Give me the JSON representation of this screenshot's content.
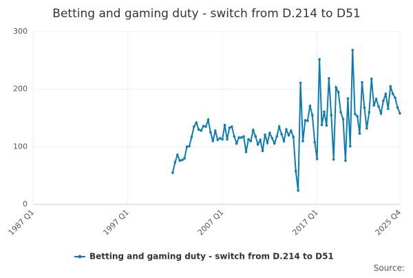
{
  "chart_data": {
    "type": "line",
    "title": "Betting and gaming duty - switch from D.214 to D51",
    "source": "Source:",
    "categories": [
      "1987 Q1",
      null,
      null,
      null,
      null,
      null,
      null,
      null,
      null,
      null,
      null,
      null,
      null,
      null,
      null,
      null,
      null,
      null,
      null,
      null,
      null,
      null,
      null,
      null,
      null,
      null,
      null,
      null,
      null,
      null,
      null,
      null,
      null,
      null,
      null,
      null,
      null,
      null,
      null,
      null,
      "1997 Q1",
      null,
      null,
      null,
      null,
      null,
      null,
      null,
      null,
      null,
      null,
      null,
      null,
      null,
      null,
      null,
      null,
      null,
      null,
      null,
      null,
      null,
      null,
      null,
      null,
      null,
      null,
      null,
      null,
      null,
      null,
      null,
      null,
      null,
      null,
      null,
      null,
      null,
      null,
      null,
      "2007 Q1",
      null,
      null,
      null,
      null,
      null,
      null,
      null,
      null,
      null,
      null,
      null,
      null,
      null,
      null,
      null,
      null,
      null,
      null,
      null,
      null,
      null,
      null,
      null,
      null,
      null,
      null,
      null,
      null,
      null,
      null,
      null,
      null,
      null,
      null,
      null,
      null,
      null,
      null,
      null,
      "2017 Q1",
      null,
      null,
      null,
      null,
      null,
      null,
      null,
      null,
      null,
      null,
      null,
      null,
      null,
      null,
      null,
      null,
      null,
      null,
      null,
      null,
      null,
      null,
      null,
      null,
      null,
      null,
      null,
      null,
      null,
      null,
      null,
      null,
      null,
      null,
      "2025 Q4"
    ],
    "series": [
      {
        "name": "Betting and gaming duty - switch from D.214 to D51",
        "color": "#0b7bb5",
        "values": [
          null,
          null,
          null,
          null,
          null,
          null,
          null,
          null,
          null,
          null,
          null,
          null,
          null,
          null,
          null,
          null,
          null,
          null,
          null,
          null,
          null,
          null,
          null,
          null,
          null,
          null,
          null,
          null,
          null,
          null,
          null,
          null,
          null,
          null,
          null,
          null,
          null,
          null,
          null,
          null,
          null,
          null,
          null,
          null,
          null,
          null,
          null,
          null,
          null,
          null,
          null,
          null,
          null,
          null,
          null,
          null,
          null,
          null,
          null,
          55,
          73,
          86,
          76,
          77,
          80,
          100,
          101,
          117,
          135,
          142,
          130,
          128,
          136,
          135,
          147,
          125,
          110,
          128,
          112,
          115,
          113,
          138,
          113,
          133,
          135,
          118,
          106,
          116,
          116,
          118,
          91,
          113,
          110,
          129,
          118,
          104,
          112,
          93,
          121,
          107,
          124,
          115,
          106,
          118,
          135,
          122,
          110,
          130,
          120,
          128,
          117,
          58,
          24,
          211,
          110,
          146,
          145,
          171,
          155,
          108,
          79,
          252,
          138,
          161,
          137,
          219,
          155,
          78,
          203,
          195,
          160,
          148,
          76,
          184,
          101,
          268,
          157,
          153,
          123,
          212,
          168,
          132,
          160,
          218,
          172,
          183,
          170,
          158,
          180,
          192,
          166,
          205,
          192,
          185,
          168,
          158
        ]
      }
    ],
    "ylim": [
      0,
      300
    ],
    "yticks": [
      0,
      100,
      200,
      300
    ],
    "grid": true
  }
}
